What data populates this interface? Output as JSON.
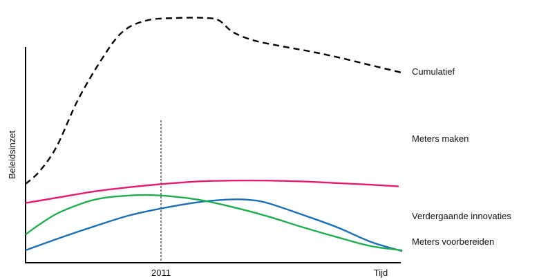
{
  "chart_data": {
    "type": "line",
    "xlabel": "Tijd",
    "ylabel": "Beleidsinzet",
    "x_tick_labels": [
      "2011"
    ],
    "reference_line": {
      "label": "2011",
      "style": "dashed"
    },
    "grid": false,
    "legend": "direct labels at right end of each line",
    "series": [
      {
        "name": "Cumulatief",
        "color": "#000000",
        "style": "dashed",
        "points": [
          [
            0,
            0.95
          ],
          [
            20,
            1.1
          ],
          [
            45,
            1.4
          ],
          [
            75,
            1.95
          ],
          [
            110,
            2.45
          ],
          [
            140,
            2.78
          ],
          [
            175,
            2.92
          ],
          [
            220,
            2.95
          ],
          [
            260,
            2.95
          ],
          [
            280,
            2.92
          ],
          [
            300,
            2.78
          ],
          [
            330,
            2.68
          ],
          [
            370,
            2.61
          ],
          [
            410,
            2.55
          ],
          [
            450,
            2.48
          ],
          [
            500,
            2.38
          ],
          [
            545,
            2.29
          ]
        ]
      },
      {
        "name": "Meters maken",
        "color": "#e8196f",
        "style": "solid",
        "points": [
          [
            0,
            0.72
          ],
          [
            50,
            0.79
          ],
          [
            100,
            0.86
          ],
          [
            150,
            0.91
          ],
          [
            200,
            0.95
          ],
          [
            250,
            0.98
          ],
          [
            300,
            0.99
          ],
          [
            350,
            0.99
          ],
          [
            400,
            0.98
          ],
          [
            450,
            0.96
          ],
          [
            500,
            0.94
          ],
          [
            540,
            0.92
          ]
        ]
      },
      {
        "name": "Verdergaande innovaties",
        "color": "#1b6db5",
        "style": "solid",
        "points": [
          [
            0,
            0.15
          ],
          [
            50,
            0.3
          ],
          [
            100,
            0.44
          ],
          [
            150,
            0.57
          ],
          [
            200,
            0.66
          ],
          [
            250,
            0.73
          ],
          [
            290,
            0.76
          ],
          [
            320,
            0.76
          ],
          [
            350,
            0.72
          ],
          [
            400,
            0.58
          ],
          [
            450,
            0.43
          ],
          [
            500,
            0.25
          ],
          [
            545,
            0.14
          ]
        ]
      },
      {
        "name": "Meters voorbereiden",
        "color": "#1fae4f",
        "style": "solid",
        "points": [
          [
            0,
            0.34
          ],
          [
            20,
            0.46
          ],
          [
            50,
            0.61
          ],
          [
            100,
            0.76
          ],
          [
            150,
            0.81
          ],
          [
            195,
            0.81
          ],
          [
            250,
            0.76
          ],
          [
            300,
            0.67
          ],
          [
            350,
            0.56
          ],
          [
            400,
            0.43
          ],
          [
            450,
            0.31
          ],
          [
            500,
            0.2
          ],
          [
            545,
            0.15
          ]
        ]
      }
    ]
  }
}
